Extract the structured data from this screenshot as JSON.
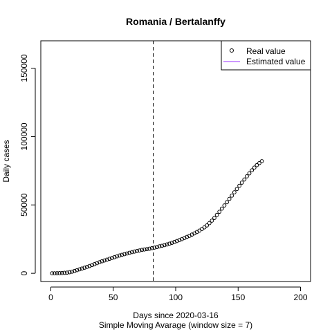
{
  "chart_data": {
    "type": "scatter",
    "title": "Romania / Bertalanffy",
    "xlabel": "Days since 2020-03-16",
    "subtitle": "Simple Moving Avarage (window size = 7)",
    "ylabel": "Daily cases",
    "xlim": [
      -8,
      208
    ],
    "ylim": [
      -6000,
      170000
    ],
    "xticks": [
      "0",
      "50",
      "100",
      "150",
      "200"
    ],
    "yticks": [
      "0",
      "50000",
      "100000",
      "150000"
    ],
    "vline_x": 82,
    "vline_style": "dashed",
    "legend_position": "top-right",
    "legend": {
      "real_label": "Real value",
      "estimated_label": "Estimated value",
      "estimated_color": "#9b30ff"
    },
    "series": [
      {
        "name": "Real value",
        "marker": "open-circle",
        "x": [
          1,
          3,
          5,
          7,
          9,
          11,
          13,
          15,
          17,
          19,
          21,
          23,
          25,
          27,
          29,
          31,
          33,
          35,
          37,
          39,
          41,
          43,
          45,
          47,
          49,
          51,
          53,
          55,
          57,
          59,
          61,
          63,
          65,
          67,
          69,
          71,
          73,
          75,
          77,
          79,
          81,
          83,
          85,
          87,
          89,
          91,
          93,
          95,
          97,
          99,
          101,
          103,
          105,
          107,
          109,
          111,
          113,
          115,
          117,
          119,
          121,
          123,
          125,
          127,
          129,
          131,
          133,
          135,
          137,
          139,
          141,
          143,
          145,
          147,
          149,
          151,
          153,
          155,
          157,
          159,
          161,
          163,
          165,
          167,
          169
        ],
        "y": [
          0,
          0,
          50,
          100,
          200,
          350,
          500,
          800,
          1200,
          1700,
          2300,
          2900,
          3500,
          4100,
          4700,
          5300,
          6000,
          6700,
          7400,
          8100,
          8800,
          9400,
          10000,
          10600,
          11200,
          11800,
          12400,
          13000,
          13500,
          14000,
          14500,
          15000,
          15500,
          15900,
          16300,
          16700,
          17100,
          17400,
          17700,
          18000,
          18400,
          18800,
          19200,
          19700,
          20100,
          20600,
          21100,
          21700,
          22300,
          22900,
          23600,
          24300,
          25000,
          25800,
          26600,
          27400,
          28300,
          29200,
          30200,
          31200,
          32400,
          33600,
          35000,
          36700,
          38500,
          40500,
          42700,
          45000,
          47300,
          49600,
          52000,
          54400,
          56800,
          59200,
          61600,
          64000,
          66300,
          68600,
          70900,
          73100,
          75300,
          77300,
          79100,
          80600,
          82000
        ]
      }
    ]
  }
}
